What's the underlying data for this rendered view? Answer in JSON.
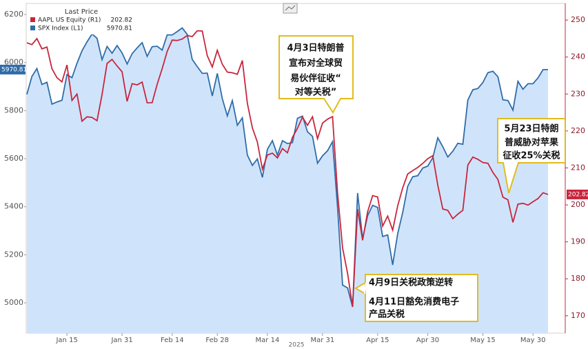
{
  "chart_data": {
    "type": "line",
    "legend_title": "Last Price",
    "xlabel": "2025",
    "categories": [
      null,
      null,
      null,
      null,
      null,
      null,
      null,
      null,
      "Jan 15",
      null,
      null,
      null,
      null,
      null,
      null,
      null,
      null,
      null,
      null,
      "Jan 31",
      null,
      null,
      null,
      null,
      null,
      null,
      null,
      null,
      null,
      "Feb 14",
      null,
      null,
      null,
      null,
      null,
      null,
      null,
      null,
      "Feb 28",
      null,
      null,
      null,
      null,
      null,
      null,
      null,
      null,
      null,
      "Mar 14",
      null,
      null,
      null,
      null,
      null,
      null,
      null,
      null,
      null,
      null,
      "Mar 31",
      null,
      null,
      null,
      null,
      null,
      null,
      null,
      null,
      null,
      null,
      "Apr 15",
      null,
      null,
      null,
      null,
      null,
      null,
      null,
      null,
      null,
      "Apr 30",
      null,
      null,
      null,
      null,
      null,
      null,
      null,
      null,
      null,
      null,
      "May 15",
      null,
      null,
      null,
      null,
      null,
      null,
      null,
      null,
      null,
      "May 30",
      null,
      null,
      null
    ],
    "series": [
      {
        "name": "AAPL US Equity (R1)",
        "color": "#c8253c",
        "axis": "y2",
        "values": [
          243.85,
          243.36,
          245.0,
          242.21,
          242.7,
          236.85,
          234.4,
          233.28,
          237.87,
          228.26,
          229.98,
          222.64,
          223.83,
          223.66,
          222.78,
          229.86,
          238.26,
          239.36,
          237.59,
          236.0,
          228.01,
          232.8,
          232.47,
          233.22,
          227.63,
          227.65,
          232.62,
          236.87,
          241.53,
          244.6,
          244.47,
          244.87,
          245.83,
          245.55,
          247.1,
          247.04,
          240.36,
          237.3,
          241.84,
          238.03,
          235.93,
          235.74,
          235.33,
          239.07,
          227.48,
          220.84,
          216.98,
          209.68,
          213.49,
          214.0,
          212.69,
          215.24,
          214.1,
          218.27,
          220.73,
          223.75,
          221.53,
          223.85,
          217.9,
          222.13,
          223.19,
          223.89,
          203.19,
          188.38,
          181.46,
          172.42,
          198.85,
          190.42,
          198.15,
          202.52,
          202.14,
          194.27,
          196.98,
          193.16,
          199.74,
          204.6,
          208.37,
          209.28,
          210.14,
          211.21,
          212.5,
          213.32,
          205.35,
          198.89,
          198.51,
          196.25,
          197.49,
          198.53,
          210.79,
          212.93,
          212.33,
          211.45,
          211.26,
          208.78,
          206.86,
          202.09,
          201.36,
          195.27,
          200.21,
          200.42,
          199.95,
          200.85,
          201.7,
          203.27,
          202.82
        ]
      },
      {
        "name": "SPX Index (L1)",
        "color": "#2f6ca8",
        "area_color": "#cfe4fb",
        "values": [
          5868,
          5942,
          5975,
          5909,
          5918,
          5827,
          5836,
          5843,
          5950,
          5937,
          5997,
          6049,
          6086,
          6119,
          6101,
          6012,
          6067,
          6039,
          6071,
          6040,
          5994,
          6037,
          6061,
          6083,
          6026,
          6066,
          6068,
          6052,
          6115,
          6115,
          6129,
          6144,
          6117,
          6013,
          5983,
          5955,
          5956,
          5861,
          5955,
          5850,
          5778,
          5842,
          5739,
          5770,
          5615,
          5572,
          5599,
          5522,
          5639,
          5675,
          5615,
          5675,
          5663,
          5667,
          5768,
          5777,
          5712,
          5693,
          5581,
          5612,
          5633,
          5671,
          5397,
          5074,
          5062,
          4983,
          5457,
          5268,
          5363,
          5406,
          5397,
          5276,
          5283,
          5158,
          5288,
          5376,
          5485,
          5525,
          5529,
          5561,
          5569,
          5604,
          5687,
          5650,
          5607,
          5631,
          5664,
          5660,
          5844,
          5887,
          5892,
          5917,
          5958,
          5964,
          5941,
          5845,
          5842,
          5802,
          5922,
          5889,
          5912,
          5912,
          5936,
          5970.37,
          5970.81
        ]
      }
    ],
    "ylim": [
      4874,
      6246
    ],
    "yticks": [
      5000,
      5200,
      5400,
      5600,
      5800,
      6000,
      6200
    ],
    "y2lim": [
      165.3,
      254.5
    ],
    "y2ticks": [
      170,
      180,
      190,
      200,
      210,
      220,
      230,
      240,
      250
    ],
    "annotations": [
      {
        "lines": [
          "4月3日特朗普",
          "宣布对全球贸",
          "易伙伴征收“",
          "对等关税”"
        ]
      },
      {
        "lines": [
          "4月9日关税政策逆转",
          "4月11日豁免消费电子",
          "产品关税"
        ]
      },
      {
        "lines": [
          "5月23日特朗",
          "普威胁对苹果",
          "征收25%关税"
        ]
      }
    ]
  }
}
